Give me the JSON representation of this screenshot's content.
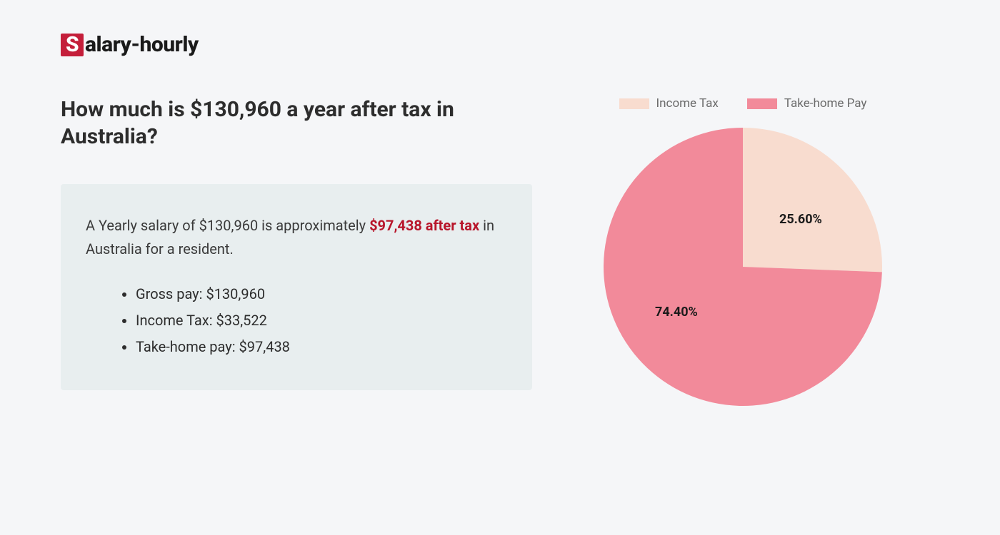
{
  "logo": {
    "prefix_letter": "S",
    "rest": "alary-hourly"
  },
  "heading": "How much is $130,960 a year after tax in Australia?",
  "summary": {
    "pre": "A Yearly salary of $130,960 is approximately ",
    "highlight": "$97,438 after tax",
    "post": " in Australia for a resident."
  },
  "breakdown": [
    "Gross pay: $130,960",
    "Income Tax: $33,522",
    "Take-home pay: $97,438"
  ],
  "chart": {
    "type": "pie",
    "background_color": "#f5f6f8",
    "radius": 195,
    "slices": [
      {
        "label": "Income Tax",
        "value": 25.6,
        "display": "25.60%",
        "color": "#f8dccf"
      },
      {
        "label": "Take-home Pay",
        "value": 74.4,
        "display": "74.40%",
        "color": "#f28a9a"
      }
    ],
    "legend_fontsize": 17,
    "legend_color": "#6b6b6b",
    "slice_label_fontsize": 18,
    "slice_label_color": "#1a1a1a",
    "start_angle_deg": -90
  },
  "colors": {
    "page_bg": "#f5f6f8",
    "box_bg": "#e8eeef",
    "logo_accent": "#c41e3a",
    "heading": "#2d2d2d",
    "body_text": "#3a3a3a",
    "highlight": "#b8162b"
  }
}
